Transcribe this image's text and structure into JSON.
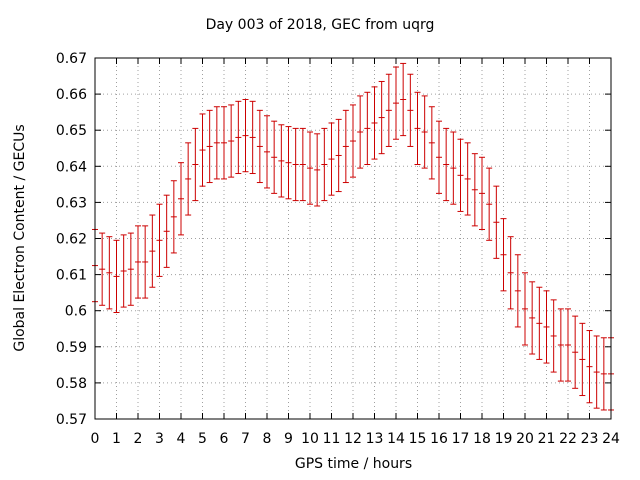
{
  "chart_data": {
    "type": "scatter",
    "title": "Day 003 of 2018, GEC from uqrg",
    "xlabel": "GPS time / hours",
    "ylabel": "Global Electron Content / GECUs",
    "xlim": [
      0,
      24
    ],
    "ylim": [
      0.57,
      0.67
    ],
    "xticks": [
      "0",
      "1",
      "2",
      "3",
      "4",
      "5",
      "6",
      "7",
      "8",
      "9",
      "10",
      "11",
      "12",
      "13",
      "14",
      "15",
      "16",
      "17",
      "18",
      "19",
      "20",
      "21",
      "22",
      "23",
      "24"
    ],
    "yticks": [
      "0.57",
      "0.58",
      "0.59",
      "0.6",
      "0.61",
      "0.62",
      "0.63",
      "0.64",
      "0.65",
      "0.66",
      "0.67"
    ],
    "grid": true,
    "error_bars": true,
    "colors": {
      "series": "#cc0000",
      "grid": "#a0a0a0",
      "axis": "#000000"
    },
    "series": [
      {
        "x": [
          0,
          0.333,
          0.667,
          1,
          1.333,
          1.667,
          2,
          2.333,
          2.667,
          3,
          3.333,
          3.667,
          4,
          4.333,
          4.667,
          5,
          5.333,
          5.667,
          6,
          6.333,
          6.667,
          7,
          7.333,
          7.667,
          8,
          8.333,
          8.667,
          9,
          9.333,
          9.667,
          10,
          10.333,
          10.667,
          11,
          11.333,
          11.667,
          12,
          12.333,
          12.667,
          13,
          13.333,
          13.667,
          14,
          14.333,
          14.667,
          15,
          15.333,
          15.667,
          16,
          16.333,
          16.667,
          17,
          17.333,
          17.667,
          18,
          18.333,
          18.667,
          19,
          19.333,
          19.667,
          20,
          20.333,
          20.667,
          21,
          21.333,
          21.667,
          22,
          22.333,
          22.667,
          23,
          23.333,
          23.667,
          24
        ],
        "y": [
          0.6125,
          0.6115,
          0.6105,
          0.6095,
          0.611,
          0.6115,
          0.6135,
          0.6135,
          0.6165,
          0.6195,
          0.622,
          0.626,
          0.631,
          0.6365,
          0.6405,
          0.6445,
          0.6455,
          0.6465,
          0.6465,
          0.647,
          0.648,
          0.6485,
          0.648,
          0.6455,
          0.644,
          0.6425,
          0.6415,
          0.641,
          0.6405,
          0.6405,
          0.6395,
          0.639,
          0.6405,
          0.642,
          0.643,
          0.6455,
          0.647,
          0.6495,
          0.6505,
          0.652,
          0.6535,
          0.6555,
          0.6575,
          0.6585,
          0.6555,
          0.6505,
          0.6495,
          0.6465,
          0.6425,
          0.6405,
          0.6395,
          0.6375,
          0.6365,
          0.6335,
          0.6325,
          0.6295,
          0.6245,
          0.6155,
          0.6105,
          0.6055,
          0.6005,
          0.598,
          0.5965,
          0.5955,
          0.593,
          0.5905,
          0.5905,
          0.5885,
          0.5865,
          0.5845,
          0.583,
          0.5825,
          0.5825
        ],
        "yerr": [
          0.01,
          0.01,
          0.01,
          0.01,
          0.01,
          0.01,
          0.01,
          0.01,
          0.01,
          0.01,
          0.01,
          0.01,
          0.01,
          0.01,
          0.01,
          0.01,
          0.01,
          0.01,
          0.01,
          0.01,
          0.01,
          0.01,
          0.01,
          0.01,
          0.01,
          0.01,
          0.01,
          0.01,
          0.01,
          0.01,
          0.01,
          0.01,
          0.01,
          0.01,
          0.01,
          0.01,
          0.01,
          0.01,
          0.01,
          0.01,
          0.01,
          0.01,
          0.01,
          0.01,
          0.01,
          0.01,
          0.01,
          0.01,
          0.01,
          0.01,
          0.01,
          0.01,
          0.01,
          0.01,
          0.01,
          0.01,
          0.01,
          0.01,
          0.01,
          0.01,
          0.01,
          0.01,
          0.01,
          0.01,
          0.01,
          0.01,
          0.01,
          0.01,
          0.01,
          0.01,
          0.01,
          0.01,
          0.01
        ]
      }
    ]
  }
}
